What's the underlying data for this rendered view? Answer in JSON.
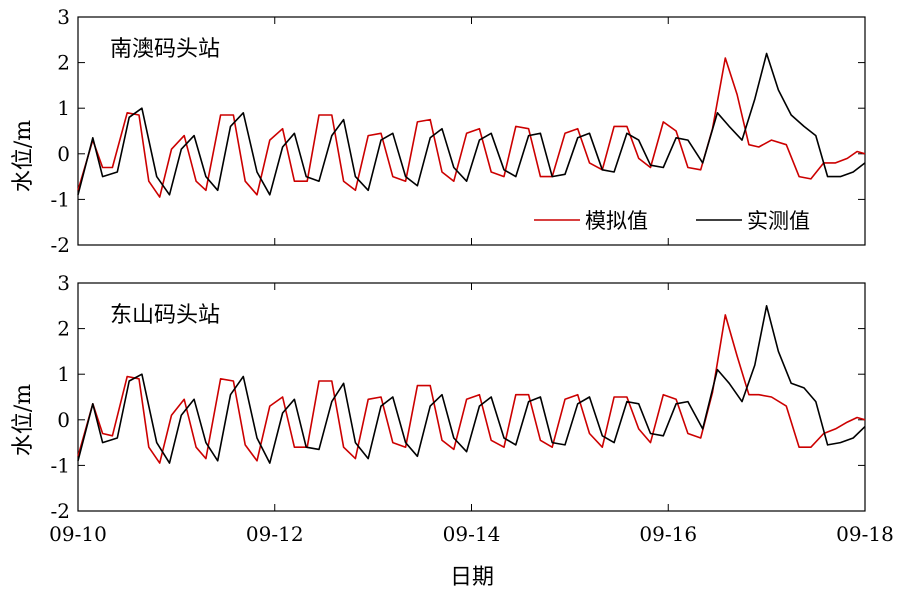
{
  "chart_data": [
    {
      "type": "line",
      "station_label": "南澳码头站",
      "ylabel": "水位/m",
      "ylim": [
        -2,
        3
      ],
      "yticks": [
        "-2",
        "-1",
        "0",
        "1",
        "2",
        "3"
      ],
      "xlim": [
        "09-10",
        "09-18"
      ],
      "xticks": [
        "09-10",
        "09-12",
        "09-14",
        "09-16",
        "09-18"
      ],
      "legend": {
        "position": "bottom-right",
        "entries": [
          "模拟值",
          "实测值"
        ]
      },
      "series": [
        {
          "name": "模拟值",
          "color": "#cc0000",
          "x_days": [
            0,
            0.15,
            0.25,
            0.35,
            0.5,
            0.62,
            0.72,
            0.83,
            0.95,
            1.08,
            1.2,
            1.3,
            1.45,
            1.58,
            1.7,
            1.82,
            1.95,
            2.08,
            2.2,
            2.33,
            2.45,
            2.58,
            2.7,
            2.82,
            2.95,
            3.08,
            3.2,
            3.33,
            3.45,
            3.58,
            3.7,
            3.82,
            3.95,
            4.08,
            4.2,
            4.33,
            4.45,
            4.58,
            4.7,
            4.82,
            4.95,
            5.08,
            5.2,
            5.33,
            5.45,
            5.58,
            5.7,
            5.82,
            5.95,
            6.08,
            6.2,
            6.33,
            6.45,
            6.58,
            6.7,
            6.82,
            6.92,
            7.05,
            7.2,
            7.33,
            7.45,
            7.58,
            7.7,
            7.82,
            7.92,
            8.0
          ],
          "y": [
            -0.8,
            0.3,
            -0.3,
            -0.3,
            0.9,
            0.85,
            -0.6,
            -0.95,
            0.1,
            0.4,
            -0.6,
            -0.8,
            0.85,
            0.85,
            -0.6,
            -0.9,
            0.3,
            0.55,
            -0.6,
            -0.6,
            0.85,
            0.85,
            -0.6,
            -0.8,
            0.4,
            0.45,
            -0.5,
            -0.6,
            0.7,
            0.75,
            -0.4,
            -0.6,
            0.45,
            0.55,
            -0.4,
            -0.5,
            0.6,
            0.55,
            -0.5,
            -0.5,
            0.45,
            0.55,
            -0.2,
            -0.35,
            0.6,
            0.6,
            -0.1,
            -0.3,
            0.7,
            0.5,
            -0.3,
            -0.35,
            0.55,
            2.1,
            1.3,
            0.2,
            0.15,
            0.3,
            0.2,
            -0.5,
            -0.55,
            -0.2,
            -0.2,
            -0.1,
            0.05,
            0.0
          ]
        },
        {
          "name": "实测值",
          "color": "#000000",
          "x_days": [
            0,
            0.15,
            0.25,
            0.4,
            0.52,
            0.65,
            0.8,
            0.93,
            1.05,
            1.18,
            1.3,
            1.42,
            1.55,
            1.68,
            1.82,
            1.95,
            2.08,
            2.2,
            2.32,
            2.45,
            2.58,
            2.7,
            2.82,
            2.95,
            3.08,
            3.2,
            3.33,
            3.45,
            3.58,
            3.7,
            3.82,
            3.95,
            4.08,
            4.2,
            4.33,
            4.45,
            4.58,
            4.7,
            4.82,
            4.95,
            5.08,
            5.2,
            5.33,
            5.45,
            5.58,
            5.7,
            5.82,
            5.95,
            6.08,
            6.2,
            6.35,
            6.5,
            6.62,
            6.75,
            6.88,
            7.0,
            7.12,
            7.25,
            7.38,
            7.5,
            7.62,
            7.75,
            7.88,
            8.0
          ],
          "y": [
            -0.9,
            0.35,
            -0.5,
            -0.4,
            0.8,
            1.0,
            -0.5,
            -0.9,
            0.1,
            0.4,
            -0.5,
            -0.8,
            0.6,
            0.9,
            -0.4,
            -0.9,
            0.15,
            0.45,
            -0.5,
            -0.6,
            0.4,
            0.75,
            -0.5,
            -0.8,
            0.3,
            0.45,
            -0.5,
            -0.7,
            0.35,
            0.55,
            -0.3,
            -0.6,
            0.3,
            0.45,
            -0.35,
            -0.5,
            0.4,
            0.45,
            -0.5,
            -0.45,
            0.35,
            0.45,
            -0.35,
            -0.4,
            0.45,
            0.3,
            -0.25,
            -0.3,
            0.35,
            0.3,
            -0.2,
            0.9,
            0.6,
            0.3,
            1.2,
            2.2,
            1.4,
            0.85,
            0.6,
            0.4,
            -0.5,
            -0.5,
            -0.4,
            -0.2
          ]
        }
      ]
    },
    {
      "type": "line",
      "station_label": "东山码头站",
      "ylabel": "水位/m",
      "xlabel": "日期",
      "ylim": [
        -2,
        3
      ],
      "yticks": [
        "-2",
        "-1",
        "0",
        "1",
        "2",
        "3"
      ],
      "xlim": [
        "09-10",
        "09-18"
      ],
      "xticks": [
        "09-10",
        "09-12",
        "09-14",
        "09-16",
        "09-18"
      ],
      "series": [
        {
          "name": "模拟值",
          "color": "#cc0000",
          "x_days": [
            0,
            0.15,
            0.25,
            0.35,
            0.5,
            0.62,
            0.72,
            0.83,
            0.95,
            1.08,
            1.2,
            1.3,
            1.45,
            1.58,
            1.7,
            1.82,
            1.95,
            2.08,
            2.2,
            2.33,
            2.45,
            2.58,
            2.7,
            2.82,
            2.95,
            3.08,
            3.2,
            3.33,
            3.45,
            3.58,
            3.7,
            3.82,
            3.95,
            4.08,
            4.2,
            4.33,
            4.45,
            4.58,
            4.7,
            4.82,
            4.95,
            5.08,
            5.2,
            5.33,
            5.45,
            5.58,
            5.7,
            5.82,
            5.95,
            6.08,
            6.2,
            6.33,
            6.45,
            6.58,
            6.7,
            6.82,
            6.92,
            7.05,
            7.2,
            7.33,
            7.45,
            7.58,
            7.7,
            7.82,
            7.92,
            8.0
          ],
          "y": [
            -0.8,
            0.35,
            -0.3,
            -0.35,
            0.95,
            0.9,
            -0.6,
            -0.95,
            0.1,
            0.45,
            -0.6,
            -0.85,
            0.9,
            0.85,
            -0.55,
            -0.9,
            0.3,
            0.5,
            -0.6,
            -0.6,
            0.85,
            0.85,
            -0.6,
            -0.85,
            0.45,
            0.5,
            -0.5,
            -0.6,
            0.75,
            0.75,
            -0.45,
            -0.65,
            0.45,
            0.55,
            -0.45,
            -0.6,
            0.55,
            0.55,
            -0.45,
            -0.6,
            0.45,
            0.55,
            -0.3,
            -0.6,
            0.5,
            0.5,
            -0.2,
            -0.5,
            0.55,
            0.45,
            -0.3,
            -0.4,
            0.6,
            2.3,
            1.4,
            0.55,
            0.55,
            0.5,
            0.3,
            -0.6,
            -0.6,
            -0.3,
            -0.2,
            -0.05,
            0.05,
            0.0
          ]
        },
        {
          "name": "实测值",
          "color": "#000000",
          "x_days": [
            0,
            0.15,
            0.25,
            0.4,
            0.52,
            0.65,
            0.8,
            0.93,
            1.05,
            1.18,
            1.3,
            1.42,
            1.55,
            1.68,
            1.82,
            1.95,
            2.08,
            2.2,
            2.32,
            2.45,
            2.58,
            2.7,
            2.82,
            2.95,
            3.08,
            3.2,
            3.33,
            3.45,
            3.58,
            3.7,
            3.82,
            3.95,
            4.08,
            4.2,
            4.33,
            4.45,
            4.58,
            4.7,
            4.82,
            4.95,
            5.08,
            5.2,
            5.33,
            5.45,
            5.58,
            5.7,
            5.82,
            5.95,
            6.08,
            6.2,
            6.35,
            6.5,
            6.62,
            6.75,
            6.88,
            7.0,
            7.12,
            7.25,
            7.38,
            7.5,
            7.62,
            7.75,
            7.88,
            8.0
          ],
          "y": [
            -0.9,
            0.35,
            -0.5,
            -0.4,
            0.85,
            1.0,
            -0.5,
            -0.95,
            0.1,
            0.45,
            -0.5,
            -0.9,
            0.55,
            0.95,
            -0.4,
            -0.95,
            0.15,
            0.45,
            -0.6,
            -0.65,
            0.4,
            0.8,
            -0.5,
            -0.85,
            0.3,
            0.5,
            -0.5,
            -0.8,
            0.3,
            0.55,
            -0.4,
            -0.7,
            0.3,
            0.5,
            -0.4,
            -0.55,
            0.4,
            0.5,
            -0.5,
            -0.55,
            0.35,
            0.5,
            -0.35,
            -0.5,
            0.4,
            0.35,
            -0.3,
            -0.35,
            0.35,
            0.4,
            -0.2,
            1.1,
            0.8,
            0.4,
            1.2,
            2.5,
            1.5,
            0.8,
            0.7,
            0.4,
            -0.55,
            -0.5,
            -0.4,
            -0.15
          ]
        }
      ]
    }
  ]
}
